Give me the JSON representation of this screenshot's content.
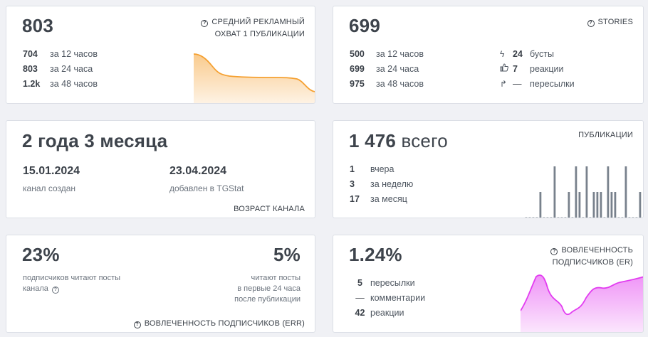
{
  "reach": {
    "value": "803",
    "caption_line1": "СРЕДНИЙ РЕКЛАМНЫЙ",
    "caption_line2": "ОХВАТ 1 ПУБЛИКАЦИИ",
    "rows": [
      {
        "value": "704",
        "label": "за 12 часов"
      },
      {
        "value": "803",
        "label": "за 24 часа"
      },
      {
        "value": "1.2k",
        "label": "за 48 часов"
      }
    ],
    "color": "#f5a030"
  },
  "stories": {
    "value": "699",
    "caption": "STORIES",
    "rows": [
      {
        "value": "500",
        "label": "за 12 часов"
      },
      {
        "value": "699",
        "label": "за 24 часа"
      },
      {
        "value": "975",
        "label": "за 48 часов"
      }
    ],
    "extras": [
      {
        "icon": "bolt-icon",
        "value": "24",
        "label": "бусты"
      },
      {
        "icon": "thumbs-up-icon",
        "value": "7",
        "label": "реакции"
      },
      {
        "icon": "share-arrow-icon",
        "value": "—",
        "label": "пересылки"
      }
    ]
  },
  "age": {
    "value": "2 года 3 месяца",
    "created_date": "15.01.2024",
    "created_label": "канал создан",
    "added_date": "23.04.2024",
    "added_label": "добавлен в TGStat",
    "caption": "ВОЗРАСТ КАНАЛА"
  },
  "posts": {
    "value": "1 476",
    "suffix": "всего",
    "caption": "ПУБЛИКАЦИИ",
    "rows": [
      {
        "value": "1",
        "label": "вчера"
      },
      {
        "value": "3",
        "label": "за неделю"
      },
      {
        "value": "17",
        "label": "за месяц"
      }
    ],
    "bars": [
      0,
      0,
      0,
      0,
      1,
      0,
      0,
      0,
      2,
      0,
      0,
      0,
      1,
      0,
      2,
      1,
      0,
      2,
      0,
      1,
      1,
      1,
      0,
      2,
      1,
      1,
      0,
      0,
      2,
      0,
      0,
      0,
      1
    ],
    "color": "#78818c"
  },
  "readers": {
    "value": "23%",
    "label_line1": "подписчиков читают посты",
    "label_line2": "канала",
    "value2": "5%",
    "label2_line1": "читают посты",
    "label2_line2": "в первые 24 часа",
    "label2_line3": "после публикации",
    "caption": "ВОВЛЕЧЕННОСТЬ ПОДПИСЧИКОВ (ERR)"
  },
  "er": {
    "value": "1.24%",
    "caption_line1": "ВОВЛЕЧЕННОСТЬ",
    "caption_line2": "ПОДПИСЧИКОВ (ER)",
    "rows": [
      {
        "value": "5",
        "label": "пересылки"
      },
      {
        "value": "—",
        "label": "комментарии"
      },
      {
        "value": "42",
        "label": "реакции"
      }
    ],
    "color": "#e23cf0"
  }
}
